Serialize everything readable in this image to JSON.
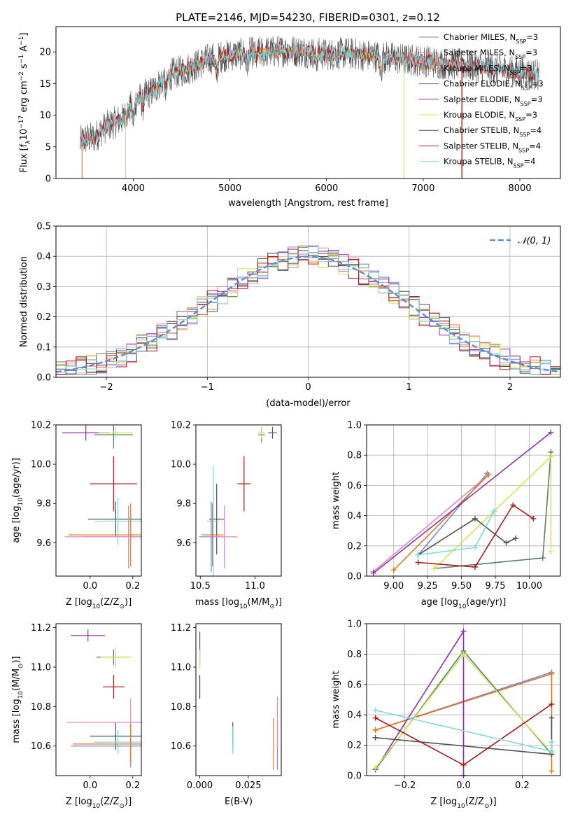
{
  "figure_title": "PLATE=2146, MJD=54230, FIBERID=0301, z=0.12",
  "colors": {
    "chabrier_miles": "#7b86e0",
    "salpeter_miles": "#e486b8",
    "kroupa_miles": "#e07a1c",
    "chabrier_elodie": "#56806a",
    "salpeter_elodie": "#8e2fb0",
    "kroupa_elodie": "#cfe84a",
    "chabrier_stelib": "#505050",
    "salpeter_stelib": "#b01818",
    "kroupa_stelib": "#7fd8dc",
    "normal": "#5b8fd6"
  },
  "chart_data": [
    {
      "type": "line",
      "title": "PLATE=2146, MJD=54230, FIBERID=0301, z=0.12",
      "xlabel": "wavelength [Angstrom, rest frame]",
      "ylabel": "Flux [f",
      "ylabel_sub": "λ",
      "ylabel_mid": "10",
      "ylabel_exp1": "−17",
      "ylabel_mid2": " erg cm",
      "ylabel_exp2": "−2",
      "ylabel_mid3": " s",
      "ylabel_exp3": "−1",
      "ylabel_end": " A",
      "ylabel_exp4": "−1",
      "ylabel_close": "]",
      "xlim": [
        3200,
        8420
      ],
      "ylim": [
        0,
        24
      ],
      "xticks": [
        "4000",
        "5000",
        "6000",
        "7000",
        "8000"
      ],
      "yticks": [
        "0",
        "5",
        "10",
        "15",
        "20"
      ],
      "spectrum_envelope": {
        "x": [
          3400,
          3500,
          3600,
          3700,
          3800,
          3900,
          4000,
          4100,
          4200,
          4300,
          4400,
          4600,
          4800,
          5000,
          5200,
          5400,
          5600,
          5800,
          6000,
          6200,
          6400,
          6600,
          6800,
          7000,
          7200,
          7400,
          7600,
          7800,
          8000,
          8200
        ],
        "y": [
          5.5,
          6.2,
          6.5,
          8.0,
          8.8,
          9.5,
          12.0,
          13.0,
          13.8,
          15.5,
          16.5,
          17.5,
          19.0,
          19.5,
          19.8,
          20.0,
          20.2,
          20.0,
          19.6,
          19.8,
          19.5,
          19.2,
          18.8,
          18.6,
          18.2,
          18.0,
          17.6,
          17.2,
          16.8,
          16.4
        ]
      },
      "legend": [
        {
          "imf": "Chabrier",
          "lib": "MILES",
          "n": "3"
        },
        {
          "imf": "Salpeter",
          "lib": "MILES",
          "n": "3"
        },
        {
          "imf": "Kroupa",
          "lib": "MILES",
          "n": "3"
        },
        {
          "imf": "Chabrier",
          "lib": "ELODIE",
          "n": "3"
        },
        {
          "imf": "Salpeter",
          "lib": "ELODIE",
          "n": "3"
        },
        {
          "imf": "Kroupa",
          "lib": "ELODIE",
          "n": "3"
        },
        {
          "imf": "Chabrier",
          "lib": "STELIB",
          "n": "4"
        },
        {
          "imf": "Salpeter",
          "lib": "STELIB",
          "n": "4"
        },
        {
          "imf": "Kroupa",
          "lib": "STELIB",
          "n": "4"
        }
      ],
      "legend_nssp_label": "N",
      "legend_nssp_sub": "SSP",
      "legend_placement": "top-right"
    },
    {
      "type": "line",
      "xlabel": "(data-model)/error",
      "ylabel": "Normed distribution",
      "xlim": [
        -2.5,
        2.5
      ],
      "ylim": [
        0,
        0.5
      ],
      "xticks": [
        "−2",
        "−1",
        "0",
        "1",
        "2"
      ],
      "yticks": [
        "0.0",
        "0.1",
        "0.2",
        "0.3",
        "0.4",
        "0.5"
      ],
      "legend_label": "𝒩(0, 1)",
      "legend_placement": "top-right",
      "histogram_bin_width": 0.1,
      "grid": true
    },
    {
      "type": "scatter",
      "xlabel": "Z [log",
      "xlabel_sub": "10",
      "xlabel_rest": "(Z/Z",
      "xlabel_sun": "⊙",
      "xlabel_end": ")]",
      "ylabel": "age  [log",
      "ylabel_sub": "10",
      "ylabel_rest": "(age/yr)]",
      "xlim": [
        -0.16,
        0.24
      ],
      "ylim": [
        9.43,
        10.2
      ],
      "xticks": [
        "0.0",
        "0.2"
      ],
      "yticks": [
        "9.6",
        "9.8",
        "10.0",
        "10.2"
      ],
      "points": [
        {
          "s": "salpeter_elodie",
          "x": -0.02,
          "y": 10.16,
          "xerr": 0.11,
          "yerr": 0.04
        },
        {
          "s": "chabrier_elodie",
          "x": 0.11,
          "y": 10.15,
          "xerr": 0.09,
          "yerr": 0.07
        },
        {
          "s": "kroupa_elodie",
          "x": 0.12,
          "y": 10.16,
          "xerr": 0.08,
          "yerr": 0.03
        },
        {
          "s": "chabrier_stelib",
          "x": 0.12,
          "y": 9.72,
          "xerr": 0.13,
          "yerr": 0.09
        },
        {
          "s": "kroupa_stelib",
          "x": 0.13,
          "y": 9.71,
          "xerr": 0.11,
          "yerr": 0.12
        },
        {
          "s": "salpeter_stelib",
          "x": 0.11,
          "y": 9.9,
          "xerr": 0.11,
          "yerr": 0.14
        },
        {
          "s": "chabrier_miles",
          "x": 0.18,
          "y": 9.63,
          "xerr": 0.21,
          "yerr": 0.16
        },
        {
          "s": "salpeter_miles",
          "x": 0.18,
          "y": 9.63,
          "xerr": 0.3,
          "yerr": 0.16
        },
        {
          "s": "kroupa_miles",
          "x": 0.19,
          "y": 9.64,
          "xerr": 0.29,
          "yerr": 0.16
        }
      ]
    },
    {
      "type": "scatter",
      "xlabel": "mass [log",
      "xlabel_sub": "10",
      "xlabel_rest": "(M/M",
      "xlabel_sun": "⊙",
      "xlabel_end": ")]",
      "xlim": [
        10.46,
        11.24
      ],
      "ylim": [
        9.43,
        10.2
      ],
      "xticks": [
        "10.5",
        "11.0"
      ],
      "yticks": [
        "9.6",
        "9.8",
        "10.0",
        "10.2"
      ],
      "points": [
        {
          "s": "salpeter_elodie",
          "x": 11.16,
          "y": 10.16,
          "xerr": 0.04,
          "yerr": 0.03
        },
        {
          "s": "chabrier_elodie",
          "x": 11.06,
          "y": 10.15,
          "xerr": 0.03,
          "yerr": 0.04
        },
        {
          "s": "kroupa_elodie",
          "x": 11.06,
          "y": 10.16,
          "xerr": 0.03,
          "yerr": 0.03
        },
        {
          "s": "salpeter_stelib",
          "x": 10.9,
          "y": 9.9,
          "xerr": 0.06,
          "yerr": 0.14
        },
        {
          "s": "chabrier_stelib",
          "x": 10.65,
          "y": 9.72,
          "xerr": 0.07,
          "yerr": 0.18
        },
        {
          "s": "kroupa_stelib",
          "x": 10.62,
          "y": 9.71,
          "xerr": 0.06,
          "yerr": 0.28
        },
        {
          "s": "chabrier_miles",
          "x": 10.6,
          "y": 9.63,
          "xerr": 0.11,
          "yerr": 0.18
        },
        {
          "s": "salpeter_miles",
          "x": 10.72,
          "y": 9.63,
          "xerr": 0.12,
          "yerr": 0.16
        },
        {
          "s": "kroupa_miles",
          "x": 10.61,
          "y": 9.64,
          "xerr": 0.1,
          "yerr": 0.16
        }
      ]
    },
    {
      "type": "line",
      "xlabel": "age  [log",
      "xlabel_sub": "10",
      "xlabel_rest": "(age/yr)]",
      "ylabel": "mass weight",
      "xlim": [
        8.8,
        10.23
      ],
      "ylim": [
        0,
        1.0
      ],
      "xticks": [
        "9.00",
        "9.25",
        "9.50",
        "9.75",
        "10.00"
      ],
      "xtick_values": [
        9.0,
        9.25,
        9.5,
        9.75,
        10.0
      ],
      "yticks": [
        "0.0",
        "0.2",
        "0.4",
        "0.6",
        "0.8",
        "1.0"
      ],
      "grid": true,
      "series": [
        {
          "s": "chabrier_miles",
          "x": [
            9.18,
            9.69
          ],
          "y": [
            0.14,
            0.68
          ]
        },
        {
          "s": "salpeter_miles",
          "x": [
            8.85,
            9.7
          ],
          "y": [
            0.03,
            0.67
          ]
        },
        {
          "s": "kroupa_miles",
          "x": [
            9.0,
            9.7
          ],
          "y": [
            0.04,
            0.67
          ]
        },
        {
          "s": "chabrier_elodie",
          "x": [
            9.3,
            10.1,
            10.16
          ],
          "y": [
            0.05,
            0.12,
            0.82
          ]
        },
        {
          "s": "salpeter_elodie",
          "x": [
            8.85,
            10.16
          ],
          "y": [
            0.02,
            0.95
          ]
        },
        {
          "s": "kroupa_elodie",
          "x": [
            9.3,
            10.16,
            10.16
          ],
          "y": [
            0.05,
            0.79,
            0.16
          ]
        },
        {
          "s": "chabrier_stelib",
          "x": [
            9.18,
            9.6,
            9.83,
            9.9
          ],
          "y": [
            0.14,
            0.38,
            0.22,
            0.25
          ]
        },
        {
          "s": "salpeter_stelib",
          "x": [
            9.18,
            9.6,
            9.88,
            10.03
          ],
          "y": [
            0.09,
            0.06,
            0.47,
            0.38
          ]
        },
        {
          "s": "kroupa_stelib",
          "x": [
            9.18,
            9.6,
            9.74
          ],
          "y": [
            0.14,
            0.19,
            0.43
          ]
        }
      ]
    },
    {
      "type": "scatter",
      "xlabel": "Z [log",
      "xlabel_sub": "10",
      "xlabel_rest": "(Z/Z",
      "xlabel_sun": "⊙",
      "xlabel_end": ")]",
      "ylabel": "mass [log",
      "ylabel_sub": "10",
      "ylabel_rest": "(M/M",
      "ylabel_sun": "⊙",
      "ylabel_end": ")]",
      "xlim": [
        -0.16,
        0.24
      ],
      "ylim": [
        10.45,
        11.22
      ],
      "xticks": [
        "0.0",
        "0.2"
      ],
      "yticks": [
        "10.6",
        "10.8",
        "11.0",
        "11.2"
      ],
      "points": [
        {
          "s": "salpeter_elodie",
          "x": -0.01,
          "y": 11.16,
          "xerr": 0.08,
          "yerr": 0.03
        },
        {
          "s": "chabrier_elodie",
          "x": 0.11,
          "y": 11.05,
          "xerr": 0.08,
          "yerr": 0.04
        },
        {
          "s": "kroupa_elodie",
          "x": 0.12,
          "y": 11.05,
          "xerr": 0.07,
          "yerr": 0.05
        },
        {
          "s": "salpeter_stelib",
          "x": 0.11,
          "y": 10.9,
          "xerr": 0.05,
          "yerr": 0.06
        },
        {
          "s": "chabrier_stelib",
          "x": 0.12,
          "y": 10.65,
          "xerr": 0.12,
          "yerr": 0.07
        },
        {
          "s": "kroupa_stelib",
          "x": 0.13,
          "y": 10.62,
          "xerr": 0.11,
          "yerr": 0.06
        },
        {
          "s": "chabrier_miles",
          "x": 0.19,
          "y": 10.6,
          "xerr": 0.28,
          "yerr": 0.11
        },
        {
          "s": "salpeter_miles",
          "x": 0.19,
          "y": 10.72,
          "xerr": 0.3,
          "yerr": 0.12
        },
        {
          "s": "kroupa_miles",
          "x": 0.19,
          "y": 10.61,
          "xerr": 0.27,
          "yerr": 0.1
        }
      ]
    },
    {
      "type": "scatter",
      "xlabel": "E(B-V)",
      "xlim": [
        -0.002,
        0.042
      ],
      "ylim": [
        10.45,
        11.22
      ],
      "xticks": [
        "0.000",
        "0.025"
      ],
      "xtick_values": [
        0.0,
        0.025
      ],
      "yticks": [
        "10.6",
        "10.8",
        "11.0",
        "11.2"
      ],
      "points": [
        {
          "s": "salpeter_elodie",
          "x": 0.0,
          "y": 11.13,
          "yerr": 0.05
        },
        {
          "s": "chabrier_elodie",
          "x": 0.0,
          "y": 11.05,
          "yerr": 0.05
        },
        {
          "s": "kroupa_elodie",
          "x": 0.0,
          "y": 11.04,
          "yerr": 0.05
        },
        {
          "s": "salpeter_stelib",
          "x": 0.0,
          "y": 10.9,
          "yerr": 0.06
        },
        {
          "s": "chabrier_stelib",
          "x": 0.017,
          "y": 10.65,
          "yerr": 0.07
        },
        {
          "s": "kroupa_stelib",
          "x": 0.017,
          "y": 10.63,
          "yerr": 0.07
        },
        {
          "s": "kroupa_miles",
          "x": 0.038,
          "y": 10.61,
          "yerr": 0.13
        },
        {
          "s": "chabrier_miles",
          "x": 0.04,
          "y": 10.6,
          "yerr": 0.12
        },
        {
          "s": "salpeter_miles",
          "x": 0.04,
          "y": 10.72,
          "yerr": 0.13
        }
      ]
    },
    {
      "type": "line",
      "xlabel": "Z [log",
      "xlabel_sub": "10",
      "xlabel_rest": "(Z/Z",
      "xlabel_sun": "⊙",
      "xlabel_end": ")]",
      "ylabel": "mass weight",
      "xlim": [
        -0.33,
        0.33
      ],
      "ylim": [
        0,
        1.0
      ],
      "xticks": [
        "−0.2",
        "0.0",
        "0.2"
      ],
      "xtick_values": [
        -0.2,
        0.0,
        0.2
      ],
      "yticks": [
        "0.0",
        "0.2",
        "0.4",
        "0.6",
        "0.8",
        "1.0"
      ],
      "grid": true,
      "series": [
        {
          "s": "chabrier_miles",
          "x": [
            -0.3,
            0.3
          ],
          "y": [
            0.3,
            0.68
          ]
        },
        {
          "s": "salpeter_miles",
          "x": [
            -0.3,
            0.3
          ],
          "y": [
            0.3,
            0.67
          ]
        },
        {
          "s": "kroupa_miles",
          "x": [
            -0.3,
            0.3,
            0.3
          ],
          "y": [
            0.3,
            0.67,
            0.03
          ]
        },
        {
          "s": "chabrier_elodie",
          "x": [
            -0.3,
            0.0,
            0.3
          ],
          "y": [
            0.04,
            0.82,
            0.14
          ]
        },
        {
          "s": "salpeter_elodie",
          "x": [
            -0.3,
            0.0,
            0.0
          ],
          "y": [
            0.04,
            0.95,
            0.0
          ]
        },
        {
          "s": "kroupa_elodie",
          "x": [
            -0.3,
            0.0,
            0.3
          ],
          "y": [
            0.05,
            0.8,
            0.15
          ]
        },
        {
          "s": "chabrier_stelib",
          "x": [
            -0.3,
            0.3,
            0.3
          ],
          "y": [
            0.25,
            0.14,
            0.38
          ]
        },
        {
          "s": "salpeter_stelib",
          "x": [
            -0.3,
            0.0,
            0.3
          ],
          "y": [
            0.38,
            0.07,
            0.47
          ]
        },
        {
          "s": "kroupa_stelib",
          "x": [
            -0.3,
            0.3,
            0.3
          ],
          "y": [
            0.43,
            0.16,
            0.22
          ]
        }
      ]
    }
  ]
}
